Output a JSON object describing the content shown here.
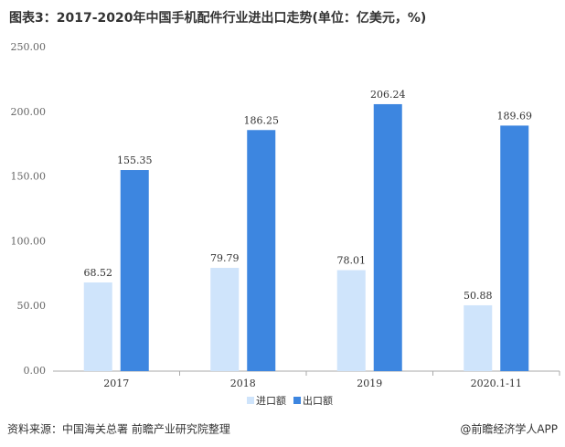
{
  "chart_data": {
    "type": "bar",
    "title": "图表3：2017-2020年中国手机配件行业进出口走势(单位：亿美元，%)",
    "categories": [
      "2017",
      "2018",
      "2019",
      "2020.1-11"
    ],
    "series": [
      {
        "name": "进口额",
        "color": "#cfe4fb",
        "values": [
          68.52,
          79.79,
          78.01,
          50.88
        ]
      },
      {
        "name": "出口额",
        "color": "#3d86e0",
        "values": [
          155.35,
          186.25,
          206.24,
          189.69
        ]
      }
    ],
    "ylim": [
      0,
      250
    ],
    "yticks": [
      {
        "value": 0,
        "label": "0.00"
      },
      {
        "value": 50,
        "label": "50.00"
      },
      {
        "value": 100,
        "label": "100.00"
      },
      {
        "value": 150,
        "label": "150.00"
      },
      {
        "value": 200,
        "label": "200.00"
      },
      {
        "value": 250,
        "label": "250.00"
      }
    ],
    "grid": false,
    "legend": "bottom",
    "source": "资料来源：中国海关总署 前瞻产业研究院整理",
    "brand": "@前瞻经济学人APP"
  }
}
